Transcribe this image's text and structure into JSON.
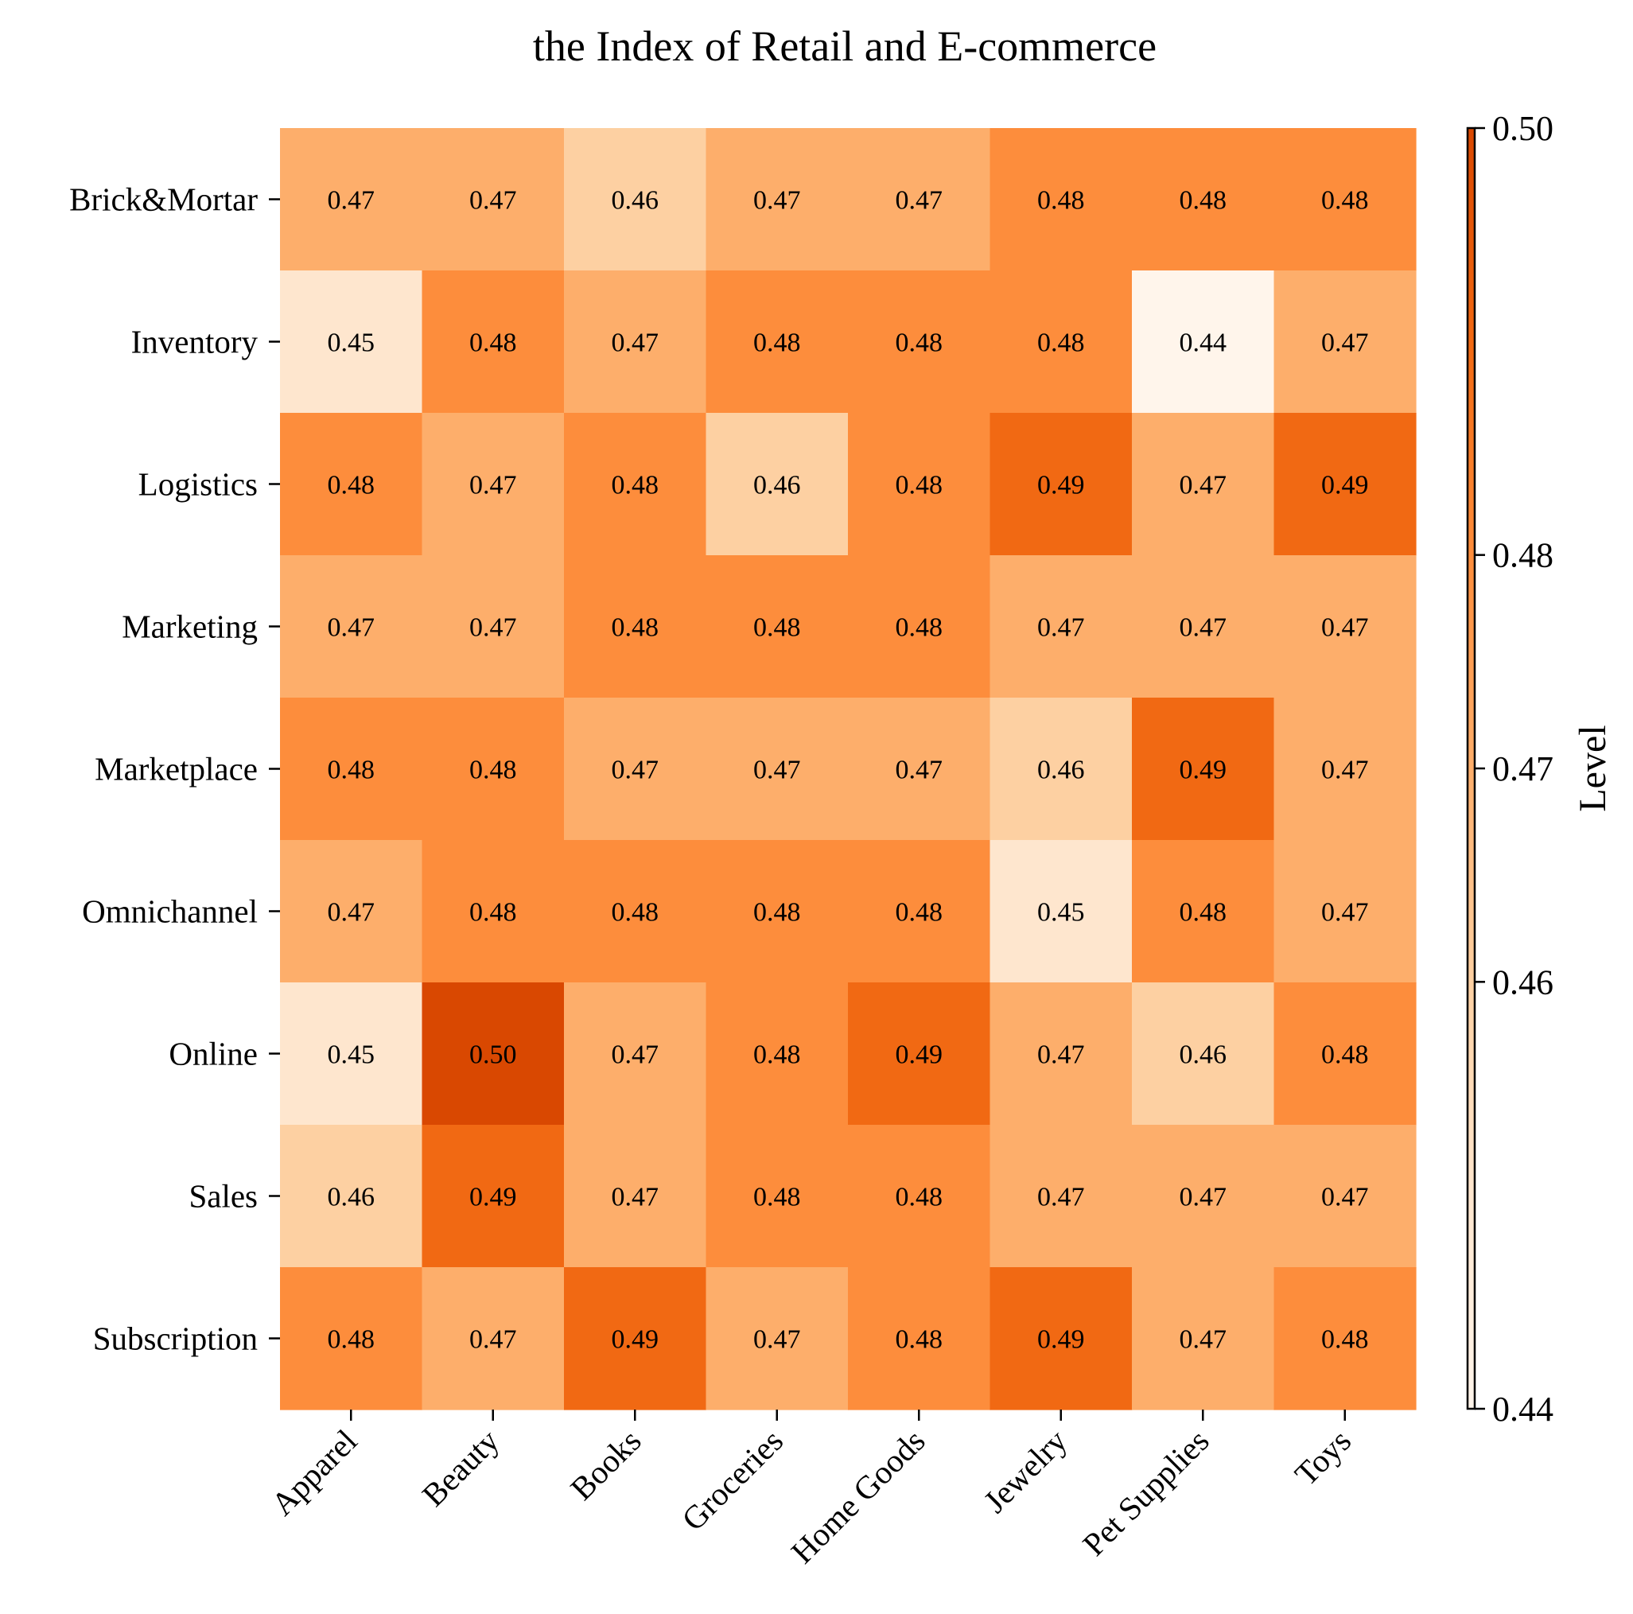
{
  "chart_data": {
    "type": "heatmap",
    "title": "the Index of Retail and E-commerce",
    "rows": [
      "Brick&Mortar",
      "Inventory",
      "Logistics",
      "Marketing",
      "Marketplace",
      "Omnichannel",
      "Online",
      "Sales",
      "Subscription"
    ],
    "columns": [
      "Apparel",
      "Beauty",
      "Books",
      "Groceries",
      "Home Goods",
      "Jewelry",
      "Pet Supplies",
      "Toys"
    ],
    "values": [
      [
        0.47,
        0.47,
        0.46,
        0.47,
        0.47,
        0.48,
        0.48,
        0.48
      ],
      [
        0.45,
        0.48,
        0.47,
        0.48,
        0.48,
        0.48,
        0.44,
        0.47
      ],
      [
        0.48,
        0.47,
        0.48,
        0.46,
        0.48,
        0.49,
        0.47,
        0.49
      ],
      [
        0.47,
        0.47,
        0.48,
        0.48,
        0.48,
        0.47,
        0.47,
        0.47
      ],
      [
        0.48,
        0.48,
        0.47,
        0.47,
        0.47,
        0.46,
        0.49,
        0.47
      ],
      [
        0.47,
        0.48,
        0.48,
        0.48,
        0.48,
        0.45,
        0.48,
        0.47
      ],
      [
        0.45,
        0.5,
        0.47,
        0.48,
        0.49,
        0.47,
        0.46,
        0.48
      ],
      [
        0.46,
        0.49,
        0.47,
        0.48,
        0.48,
        0.47,
        0.47,
        0.47
      ],
      [
        0.48,
        0.47,
        0.49,
        0.47,
        0.48,
        0.49,
        0.47,
        0.48
      ]
    ],
    "colorbar": {
      "label": "Level",
      "range": [
        0.44,
        0.5
      ],
      "ticks": [
        "0.44",
        "0.46",
        "0.47",
        "0.48",
        "0.50"
      ],
      "tick_values": [
        0.44,
        0.46,
        0.47,
        0.48,
        0.5
      ]
    },
    "colormap": "Oranges",
    "colors": [
      "#fff5eb",
      "#fee6ce",
      "#fdd0a2",
      "#fdae6b",
      "#fd8d3c",
      "#f16913",
      "#d94801"
    ]
  }
}
